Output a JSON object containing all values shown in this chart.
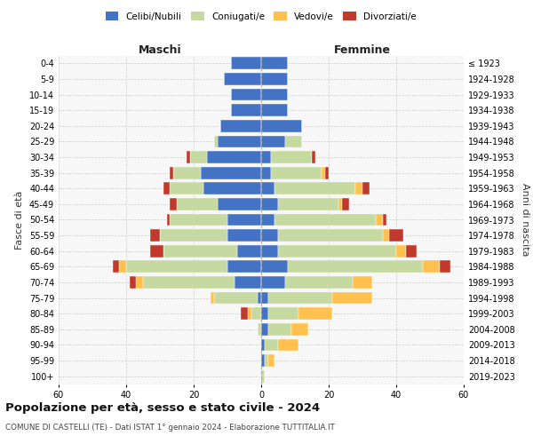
{
  "age_groups": [
    "0-4",
    "5-9",
    "10-14",
    "15-19",
    "20-24",
    "25-29",
    "30-34",
    "35-39",
    "40-44",
    "45-49",
    "50-54",
    "55-59",
    "60-64",
    "65-69",
    "70-74",
    "75-79",
    "80-84",
    "85-89",
    "90-94",
    "95-99",
    "100+"
  ],
  "birth_years": [
    "2019-2023",
    "2014-2018",
    "2009-2013",
    "2004-2008",
    "1999-2003",
    "1994-1998",
    "1989-1993",
    "1984-1988",
    "1979-1983",
    "1974-1978",
    "1969-1973",
    "1964-1968",
    "1959-1963",
    "1954-1958",
    "1949-1953",
    "1944-1948",
    "1939-1943",
    "1934-1938",
    "1929-1933",
    "1924-1928",
    "≤ 1923"
  ],
  "maschi": {
    "celibe": [
      9,
      11,
      9,
      9,
      12,
      13,
      16,
      18,
      17,
      13,
      10,
      10,
      7,
      10,
      8,
      1,
      0,
      0,
      0,
      0,
      0
    ],
    "coniugato": [
      0,
      0,
      0,
      0,
      0,
      1,
      5,
      8,
      10,
      12,
      17,
      20,
      22,
      30,
      27,
      13,
      3,
      1,
      0,
      0,
      0
    ],
    "vedovo": [
      0,
      0,
      0,
      0,
      0,
      0,
      0,
      0,
      0,
      0,
      0,
      0,
      0,
      2,
      2,
      1,
      1,
      0,
      0,
      0,
      0
    ],
    "divorziato": [
      0,
      0,
      0,
      0,
      0,
      0,
      1,
      1,
      2,
      2,
      1,
      3,
      4,
      2,
      2,
      0,
      2,
      0,
      0,
      0,
      0
    ]
  },
  "femmine": {
    "nubile": [
      8,
      8,
      8,
      8,
      12,
      7,
      3,
      3,
      4,
      5,
      4,
      5,
      5,
      8,
      7,
      2,
      2,
      2,
      1,
      1,
      0
    ],
    "coniugata": [
      0,
      0,
      0,
      0,
      0,
      5,
      12,
      15,
      24,
      18,
      30,
      31,
      35,
      40,
      20,
      19,
      9,
      7,
      4,
      1,
      1
    ],
    "vedova": [
      0,
      0,
      0,
      0,
      0,
      0,
      0,
      1,
      2,
      1,
      2,
      2,
      3,
      5,
      6,
      12,
      10,
      5,
      6,
      2,
      0
    ],
    "divorziata": [
      0,
      0,
      0,
      0,
      0,
      0,
      1,
      1,
      2,
      2,
      1,
      4,
      3,
      3,
      0,
      0,
      0,
      0,
      0,
      0,
      0
    ]
  },
  "colors": {
    "celibe_nubile": "#4472c4",
    "coniugato": "#c5d9a0",
    "vedovo": "#ffc04d",
    "divorziato": "#c0392b"
  },
  "title": "Popolazione per età, sesso e stato civile - 2024",
  "subtitle": "COMUNE DI CASTELLI (TE) - Dati ISTAT 1° gennaio 2024 - Elaborazione TUTTITALIA.IT",
  "ylabel_left": "Fasce di età",
  "ylabel_right": "Anni di nascita",
  "xlabel_left": "Maschi",
  "xlabel_right": "Femmine",
  "xlim": 60,
  "background_color": "#ffffff",
  "grid_color": "#cccccc",
  "ax_bg": "#f7f7f7"
}
